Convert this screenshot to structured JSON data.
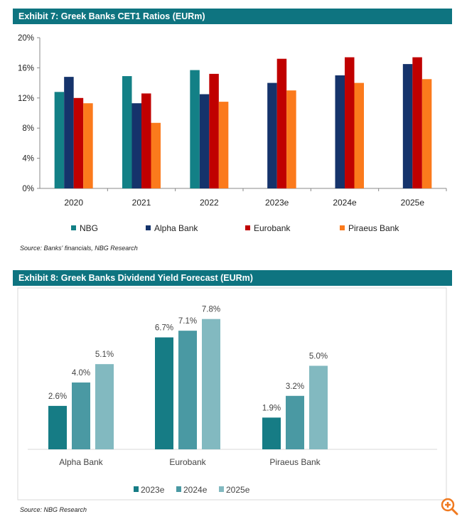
{
  "chart_data": [
    {
      "type": "bar",
      "title": "Exhibit 7: Greek Banks CET1 Ratios (EURm)",
      "categories": [
        "2020",
        "2021",
        "2022",
        "2023e",
        "2024e",
        "2025e"
      ],
      "series": [
        {
          "name": "NBG",
          "color": "#138086",
          "values": [
            12.8,
            14.9,
            15.7,
            null,
            null,
            null
          ]
        },
        {
          "name": "Alpha Bank",
          "color": "#15336b",
          "values": [
            14.8,
            11.3,
            12.5,
            14.0,
            15.0,
            16.5
          ]
        },
        {
          "name": "Eurobank",
          "color": "#c00000",
          "values": [
            12.0,
            12.6,
            15.2,
            17.2,
            17.4,
            17.4
          ]
        },
        {
          "name": "Piraeus Bank",
          "color": "#fb7a1c",
          "values": [
            11.3,
            8.7,
            11.5,
            13.0,
            14.0,
            14.5
          ]
        }
      ],
      "yticks": [
        "0%",
        "4%",
        "8%",
        "12%",
        "16%",
        "20%"
      ],
      "ylim": [
        0,
        20
      ],
      "legend": "bottom",
      "source": "Source: Banks' financials, NBG Research"
    },
    {
      "type": "bar",
      "title": "Exhibit 8: Greek Banks Dividend Yield Forecast (EURm)",
      "categories": [
        "Alpha Bank",
        "Eurobank",
        "Piraeus Bank"
      ],
      "series": [
        {
          "name": "2023e",
          "color": "#167c85",
          "values": [
            2.6,
            6.7,
            1.9
          ],
          "labels": [
            "2.6%",
            "6.7%",
            "1.9%"
          ]
        },
        {
          "name": "2024e",
          "color": "#4a99a3",
          "values": [
            4.0,
            7.1,
            3.2
          ],
          "labels": [
            "4.0%",
            "7.1%",
            "3.2%"
          ]
        },
        {
          "name": "2025e",
          "color": "#82b9c0",
          "values": [
            5.1,
            7.8,
            5.0
          ],
          "labels": [
            "5.1%",
            "7.8%",
            "5.0%"
          ]
        }
      ],
      "legend": "bottom",
      "source": "Source: NBG Research"
    }
  ],
  "icons": {
    "zoom": "zoom-in-icon"
  }
}
